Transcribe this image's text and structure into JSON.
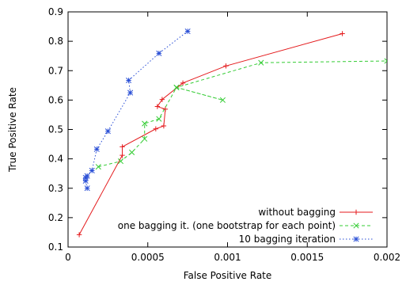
{
  "chart_data": {
    "type": "line",
    "xlabel": "False Positive Rate",
    "ylabel": "True Positive Rate",
    "xlim": [
      0,
      0.002
    ],
    "ylim": [
      0.1,
      0.9
    ],
    "x_ticks": [
      0,
      0.0005,
      0.001,
      0.0015,
      0.002
    ],
    "x_tick_labels": [
      "0",
      "0.0005",
      "0.001",
      "0.0015",
      "0.002"
    ],
    "y_ticks": [
      0.1,
      0.2,
      0.3,
      0.4,
      0.5,
      0.6,
      0.7,
      0.8,
      0.9
    ],
    "y_tick_labels": [
      "0.1",
      "0.2",
      "0.3",
      "0.4",
      "0.5",
      "0.6",
      "0.7",
      "0.8",
      "0.9"
    ],
    "grid": false,
    "legend_position": "bottom-right",
    "series": [
      {
        "name": "without bagging",
        "color": "#e41a1c",
        "marker": "plus",
        "dash": "solid",
        "points": [
          [
            7e-05,
            0.142
          ],
          [
            0.00034,
            0.412
          ],
          [
            0.00034,
            0.441
          ],
          [
            0.00055,
            0.502
          ],
          [
            0.0006,
            0.512
          ],
          [
            0.00061,
            0.569
          ],
          [
            0.00056,
            0.578
          ],
          [
            0.00059,
            0.602
          ],
          [
            0.00072,
            0.658
          ],
          [
            0.00099,
            0.716
          ],
          [
            0.00172,
            0.826
          ]
        ]
      },
      {
        "name": "one bagging it. (one bootstrap for each point)",
        "color": "#33cc33",
        "marker": "cross",
        "dash": "dashed",
        "points": [
          [
            0.00019,
            0.373
          ],
          [
            0.00033,
            0.392
          ],
          [
            0.0004,
            0.422
          ],
          [
            0.00048,
            0.468
          ],
          [
            0.00048,
            0.52
          ],
          [
            0.00057,
            0.536
          ],
          [
            0.00068,
            0.643
          ],
          [
            0.00097,
            0.6
          ],
          [
            0.00068,
            0.643
          ],
          [
            0.00121,
            0.727
          ],
          [
            0.002,
            0.733
          ]
        ]
      },
      {
        "name": "10 bagging iteration",
        "color": "#2a4fd6",
        "marker": "star",
        "dash": "dotted",
        "points": [
          [
            0.00012,
            0.3
          ],
          [
            0.00011,
            0.325
          ],
          [
            0.00011,
            0.336
          ],
          [
            0.00012,
            0.342
          ],
          [
            0.00015,
            0.36
          ],
          [
            0.00018,
            0.433
          ],
          [
            0.00025,
            0.494
          ],
          [
            0.00039,
            0.625
          ],
          [
            0.00038,
            0.667
          ],
          [
            0.00057,
            0.759
          ],
          [
            0.00075,
            0.834
          ]
        ]
      }
    ]
  }
}
